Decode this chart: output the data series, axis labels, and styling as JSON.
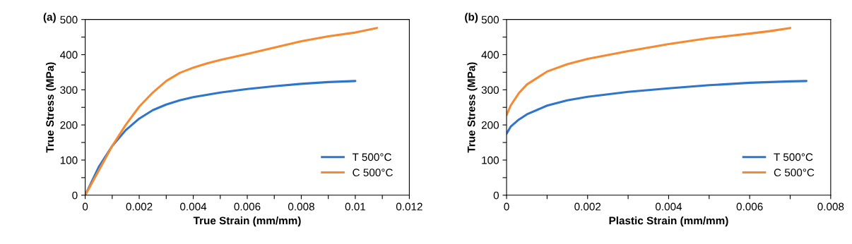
{
  "chart_data": [
    {
      "type": "line",
      "title": "(a)",
      "xlabel": "True Strain (mm/mm)",
      "ylabel": "True Stress (MPa)",
      "xlim": [
        0,
        0.012
      ],
      "ylim": [
        0,
        500
      ],
      "xticks": [
        0,
        {
          "value": 0.001,
          "label": null
        },
        0.002,
        {
          "value": 0.003,
          "label": null
        },
        0.004,
        {
          "value": 0.005,
          "label": null
        },
        0.006,
        {
          "value": 0.007,
          "label": null
        },
        0.008,
        {
          "value": 0.009,
          "label": null
        },
        0.01,
        {
          "value": 0.011,
          "label": null
        },
        0.012
      ],
      "yticks": [
        0,
        {
          "value": 50,
          "label": null
        },
        100,
        {
          "value": 150,
          "label": null
        },
        200,
        {
          "value": 250,
          "label": null
        },
        300,
        {
          "value": 350,
          "label": null
        },
        400,
        {
          "value": 450,
          "label": null
        },
        500
      ],
      "grid": false,
      "legend": "bottom right",
      "marker": "none",
      "line_style": "solid",
      "series": [
        {
          "name": "T 500°C",
          "color": "#2f75c9",
          "x": [
            0,
            0.0005,
            0.001,
            0.0015,
            0.002,
            0.0025,
            0.003,
            0.0035,
            0.004,
            0.005,
            0.006,
            0.007,
            0.008,
            0.009,
            0.01
          ],
          "values": [
            0,
            80,
            140,
            185,
            218,
            242,
            258,
            270,
            279,
            292,
            302,
            310,
            317,
            322,
            325
          ]
        },
        {
          "name": "C 500°C",
          "color": "#f58a32",
          "x": [
            0,
            0.0005,
            0.001,
            0.0015,
            0.002,
            0.0025,
            0.003,
            0.0035,
            0.004,
            0.0045,
            0.005,
            0.006,
            0.007,
            0.008,
            0.009,
            0.01,
            0.0108
          ],
          "values": [
            0,
            70,
            140,
            200,
            252,
            292,
            325,
            348,
            363,
            375,
            385,
            402,
            420,
            438,
            452,
            463,
            476
          ]
        }
      ]
    },
    {
      "type": "line",
      "title": "(b)",
      "xlabel": "Plastic Strain (mm/mm)",
      "ylabel": "True Stress (MPa)",
      "xlim": [
        0,
        0.008
      ],
      "ylim": [
        0,
        500
      ],
      "xticks": [
        0,
        {
          "value": 0.001,
          "label": null
        },
        0.002,
        {
          "value": 0.003,
          "label": null
        },
        0.004,
        {
          "value": 0.005,
          "label": null
        },
        0.006,
        {
          "value": 0.007,
          "label": null
        },
        0.008
      ],
      "yticks": [
        0,
        {
          "value": 50,
          "label": null
        },
        100,
        {
          "value": 150,
          "label": null
        },
        200,
        {
          "value": 250,
          "label": null
        },
        300,
        {
          "value": 350,
          "label": null
        },
        400,
        {
          "value": 450,
          "label": null
        },
        500
      ],
      "grid": false,
      "legend": "bottom right",
      "marker": "none",
      "line_style": "solid",
      "series": [
        {
          "name": "T 500°C",
          "color": "#2f75c9",
          "x": [
            0,
            0.0001,
            0.0003,
            0.0005,
            0.001,
            0.0015,
            0.002,
            0.003,
            0.004,
            0.005,
            0.006,
            0.007,
            0.0074
          ],
          "values": [
            175,
            195,
            215,
            230,
            255,
            270,
            280,
            294,
            304,
            313,
            320,
            324,
            325
          ]
        },
        {
          "name": "C 500°C",
          "color": "#f58a32",
          "x": [
            0,
            0.0001,
            0.0003,
            0.0005,
            0.001,
            0.0015,
            0.002,
            0.003,
            0.004,
            0.005,
            0.006,
            0.0065,
            0.007
          ],
          "values": [
            228,
            255,
            290,
            315,
            352,
            373,
            388,
            410,
            430,
            447,
            460,
            467,
            476
          ]
        }
      ]
    }
  ]
}
